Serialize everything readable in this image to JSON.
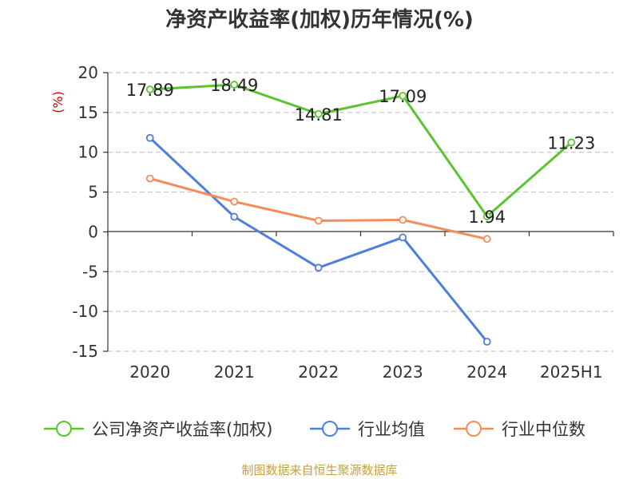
{
  "chart_data": {
    "type": "line",
    "title": "净资产收益率(加权)历年情况(%)",
    "ylabel": "(%)",
    "categories": [
      "2020",
      "2021",
      "2022",
      "2023",
      "2024",
      "2025H1"
    ],
    "ylim": [
      -15,
      20
    ],
    "yticks": [
      20,
      15,
      10,
      5,
      0,
      -5,
      -10,
      -15
    ],
    "grid": true,
    "legend_position": "bottom",
    "series": [
      {
        "name": "公司净资产收益率(加权)",
        "color": "#5cc431",
        "values": [
          17.89,
          18.49,
          14.81,
          17.09,
          1.94,
          11.23
        ],
        "labels": [
          "17.89",
          "18.49",
          "14.81",
          "17.09",
          "1.94",
          "11.23"
        ]
      },
      {
        "name": "行业均值",
        "color": "#4f7fdb",
        "values": [
          11.8,
          1.9,
          -4.5,
          -0.7,
          -13.8,
          null
        ]
      },
      {
        "name": "行业中位数",
        "color": "#f68c5a",
        "values": [
          6.7,
          3.8,
          1.4,
          1.5,
          -0.9,
          null
        ]
      }
    ]
  },
  "source": "制图数据来自恒生聚源数据库"
}
